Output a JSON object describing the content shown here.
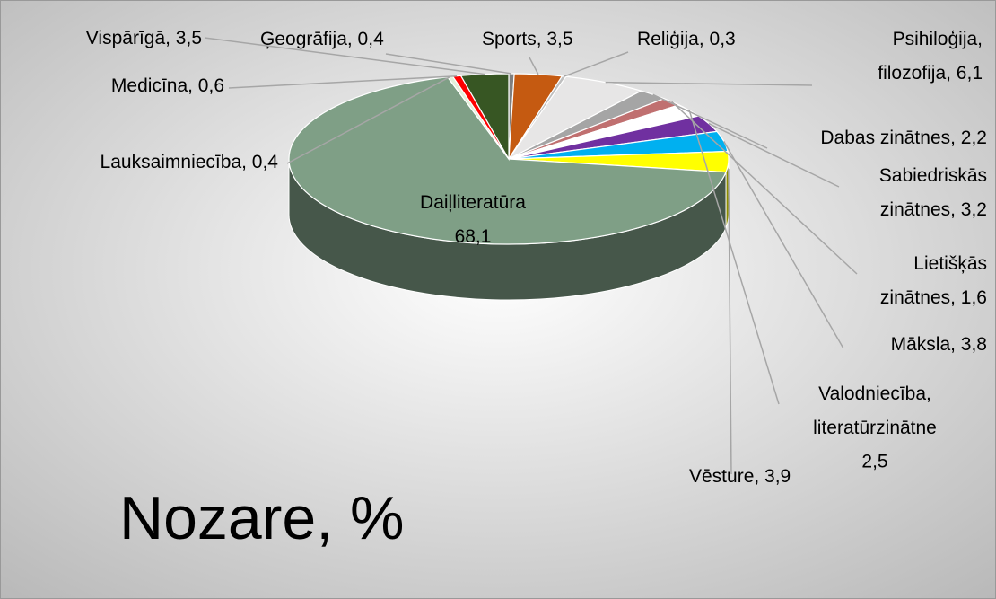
{
  "chart_data": {
    "type": "pie",
    "title": "Nozare, %",
    "categories": [
      "Ģeogrāfija",
      "Sports",
      "Reliģija",
      "Psihiloģija, filozofija",
      "Dabas zinātnes",
      "Lietišķās zinātnes",
      "Valodniecība, literatūrzinātne",
      "Sabiedriskās zinātnes",
      "Māksla",
      "Vēsture",
      "Daiļliteratūra",
      "Lauksaimniecība",
      "Medicīna",
      "Vispārīgā"
    ],
    "values": [
      0.4,
      3.5,
      0.3,
      6.1,
      2.2,
      1.6,
      2.5,
      3.2,
      3.8,
      3.9,
      68.1,
      0.4,
      0.6,
      3.5
    ],
    "value_labels": [
      "Ģeogrāfija, 0,4",
      "Sports, 3,5",
      "Reliģija, 0,3",
      "Psihiloģija,\nfilozofija, 6,1",
      "Dabas zinātnes, 2,2",
      "Lietišķās\nzinātnes, 1,6",
      "Valodniecība,\nliteratūrzinātne\n2,5",
      "Sabiedriskās\nzinātnes, 3,2",
      "Māksla, 3,8",
      "Vēsture, 3,9",
      "Daiļliteratūra\n68,1",
      "Lauksaimniecība, 0,4",
      "Medicīna, 0,6",
      "Vispārīgā, 3,5"
    ],
    "colors": [
      "#7f7f7f",
      "#c55a11",
      "#bfbfbf",
      "#e7e6e6",
      "#a5a5a5",
      "#c07070",
      "#ffffff",
      "#7030a0",
      "#00b0f0",
      "#ffff00",
      "#7f9f86",
      "#e2efda",
      "#ff0000",
      "#375623"
    ]
  }
}
